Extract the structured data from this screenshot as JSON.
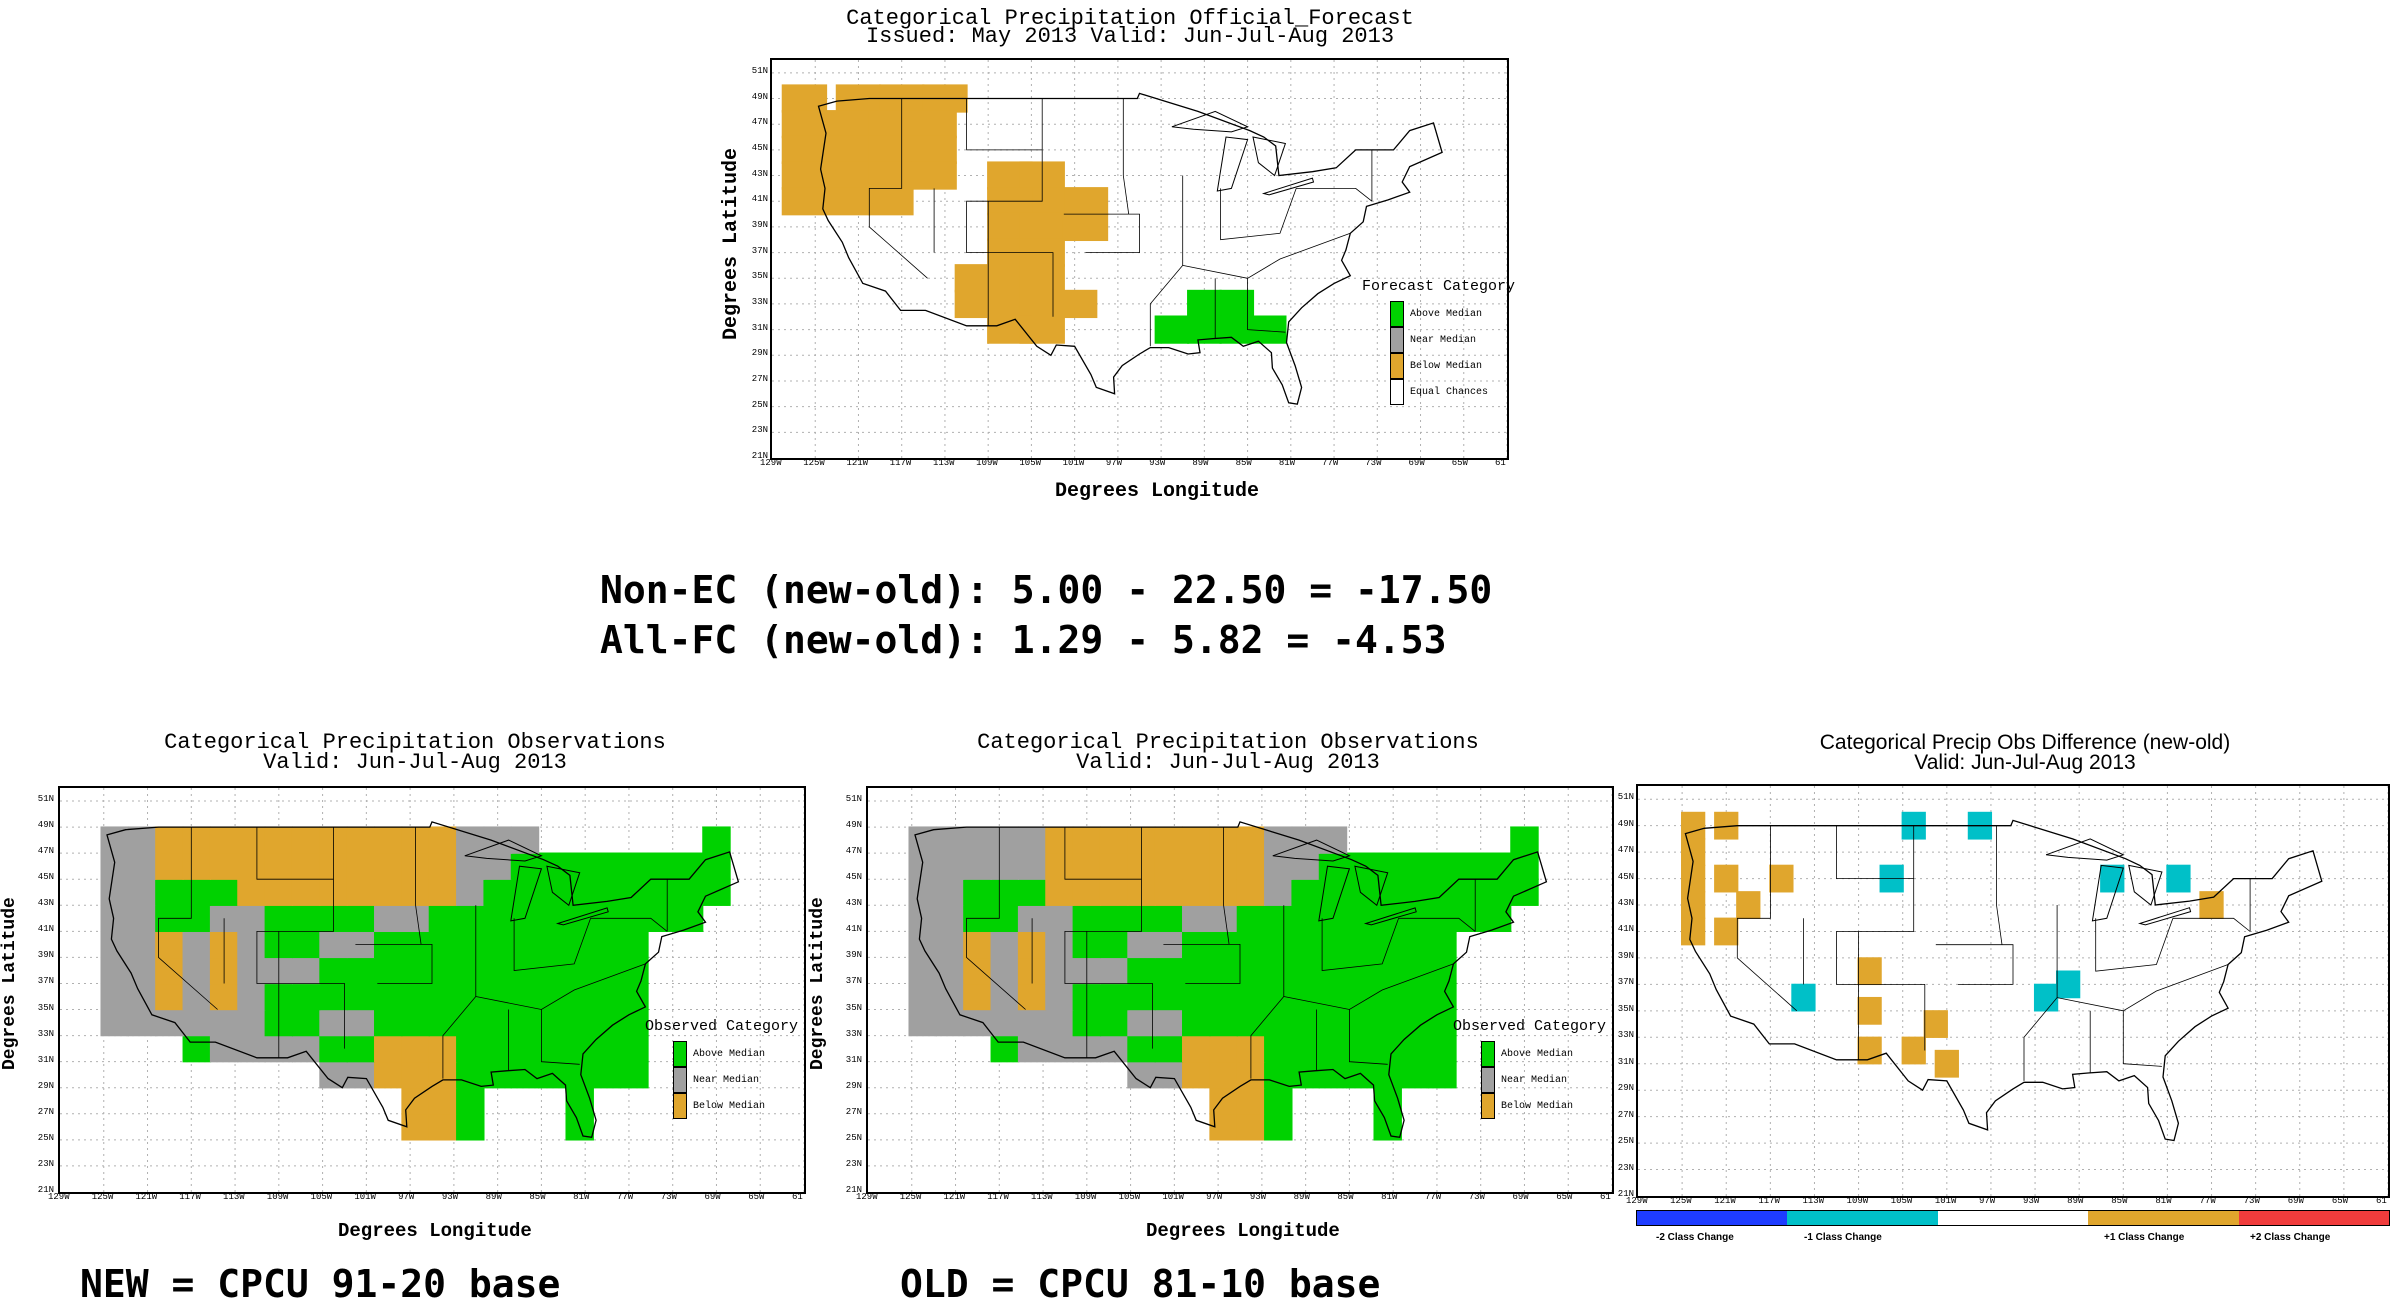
{
  "colors": {
    "above": "#00d200",
    "near": "#a0a0a0",
    "below": "#e0a62d",
    "equal": "#ffffff",
    "minus2": "#1e3cff",
    "minus1": "#00c0c8",
    "plus1": "#e0a62d",
    "plus2": "#f03c3c",
    "grid": "#b0b0b0"
  },
  "forecast_map": {
    "title1": "Categorical Precipitation Official_Forecast",
    "title2": "Issued: May 2013 Valid: Jun-Jul-Aug 2013",
    "ylabel": "Degrees Latitude",
    "xlabel": "Degrees Longitude",
    "legend_title": "Forecast Category",
    "legend": [
      "Above Median",
      "Near Median",
      "Below Median",
      "Equal Chances"
    ],
    "regions": {
      "below": [
        [
          -126,
          49
        ],
        [
          -121,
          49
        ],
        [
          -117,
          49
        ],
        [
          -113,
          49
        ],
        [
          -126,
          47
        ],
        [
          -122,
          47
        ],
        [
          -118,
          47
        ],
        [
          -114,
          47
        ],
        [
          -126,
          45
        ],
        [
          -122,
          45
        ],
        [
          -118,
          45
        ],
        [
          -114,
          45
        ],
        [
          -126,
          43
        ],
        [
          -122,
          43
        ],
        [
          -118,
          43
        ],
        [
          -114,
          43
        ],
        [
          -126,
          41
        ],
        [
          -122,
          41
        ],
        [
          -118,
          41
        ],
        [
          -107,
          43
        ],
        [
          -104,
          43
        ],
        [
          -100,
          41
        ],
        [
          -104,
          41
        ],
        [
          -107,
          41
        ],
        [
          -107,
          39
        ],
        [
          -104,
          39
        ],
        [
          -100,
          39
        ],
        [
          -107,
          37
        ],
        [
          -104,
          37
        ],
        [
          -110,
          35
        ],
        [
          -107,
          35
        ],
        [
          -104,
          35
        ],
        [
          -110,
          33
        ],
        [
          -107,
          33
        ],
        [
          -104,
          33
        ],
        [
          -101,
          33
        ],
        [
          -107,
          31
        ],
        [
          -104,
          31
        ]
      ],
      "above": [
        [
          -89,
          33
        ],
        [
          -86,
          33
        ],
        [
          -92,
          31
        ],
        [
          -89,
          31
        ],
        [
          -86,
          31
        ],
        [
          -83,
          31
        ]
      ]
    }
  },
  "scores": {
    "line1": "Non-EC (new-old): 5.00 - 22.50 = -17.50",
    "line2": "All-FC (new-old): 1.29 - 5.82 = -4.53"
  },
  "obs_new": {
    "title1": "Categorical Precipitation Observations",
    "title2": "Valid: Jun-Jul-Aug 2013",
    "ylabel": "Degrees Latitude",
    "xlabel": "Degrees Longitude",
    "legend_title": "Observed Category",
    "legend": [
      "Above Median",
      "Near Median",
      "Below Median"
    ],
    "caption": "NEW = CPCU 91-20 base"
  },
  "obs_old": {
    "title1": "Categorical Precipitation Observations",
    "title2": "Valid: Jun-Jul-Aug 2013",
    "ylabel": "Degrees Latitude",
    "xlabel": "Degrees Longitude",
    "legend_title": "Observed Category",
    "legend": [
      "Above Median",
      "Near Median",
      "Below Median"
    ],
    "caption": "OLD = CPCU 81-10 base"
  },
  "diff_map": {
    "title1": "Categorical Precip Obs Difference (new-old)",
    "title2": "Valid: Jun-Jul-Aug 2013",
    "colorbar": [
      "-2 Class Change",
      "-1 Class Change",
      "+1 Class Change",
      "+2 Class Change"
    ],
    "minus1": [
      [
        -104,
        49
      ],
      [
        -98,
        49
      ],
      [
        -106,
        45
      ],
      [
        -86,
        45
      ],
      [
        -80,
        45
      ],
      [
        -114,
        36
      ],
      [
        -92,
        36
      ],
      [
        -90,
        37
      ]
    ],
    "plus1": [
      [
        -124,
        49
      ],
      [
        -121,
        49
      ],
      [
        -124,
        47
      ],
      [
        -124,
        45
      ],
      [
        -121,
        45
      ],
      [
        -116,
        45
      ],
      [
        -124,
        43
      ],
      [
        -119,
        43
      ],
      [
        -124,
        41
      ],
      [
        -121,
        41
      ],
      [
        -108,
        38
      ],
      [
        -108,
        35
      ],
      [
        -102,
        34
      ],
      [
        -108,
        32
      ],
      [
        -104,
        32
      ],
      [
        -101,
        31
      ],
      [
        -77,
        43
      ]
    ]
  },
  "axes": {
    "lat_ticks": [
      "51N",
      "49N",
      "47N",
      "45N",
      "43N",
      "41N",
      "39N",
      "37N",
      "35N",
      "33N",
      "31N",
      "29N",
      "27N",
      "25N",
      "23N",
      "21N"
    ],
    "lon_ticks": [
      "129W",
      "125W",
      "121W",
      "117W",
      "113W",
      "109W",
      "105W",
      "101W",
      "97W",
      "93W",
      "89W",
      "85W",
      "81W",
      "77W",
      "73W",
      "69W",
      "65W",
      "61"
    ]
  }
}
